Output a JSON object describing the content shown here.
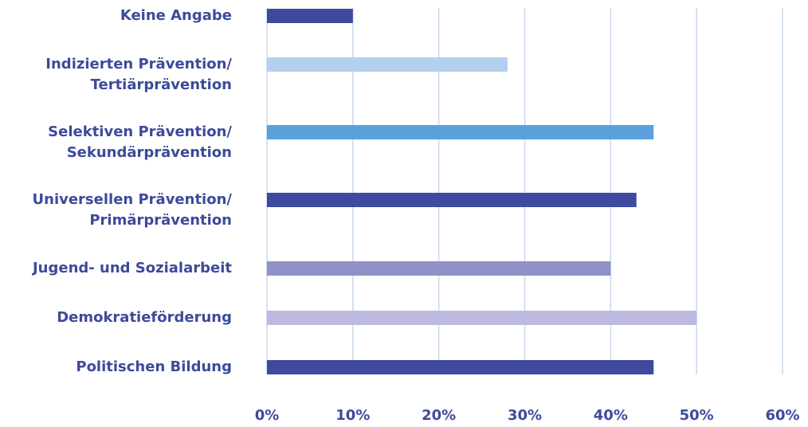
{
  "chart_data": {
    "type": "bar",
    "orientation": "horizontal",
    "categories": [
      "Keine Angabe",
      "Indizierten Prävention/\nTertiärprävention",
      "Selektiven Prävention/\nSekundärprävention",
      "Universellen Prävention/\nPrimärprävention",
      "Jugend- und Sozialarbeit",
      "Demokratieförderung",
      "Politischen Bildung"
    ],
    "values": [
      10,
      28,
      45,
      43,
      40,
      50,
      45
    ],
    "colors": [
      "#3f4a9e",
      "#b5d0ef",
      "#5aa1dc",
      "#3f4a9e",
      "#9090c8",
      "#bcbae0",
      "#3f4a9e"
    ],
    "xlim": [
      0,
      60
    ],
    "xticks": [
      {
        "value": 0,
        "label": "0%"
      },
      {
        "value": 10,
        "label": "10%"
      },
      {
        "value": 20,
        "label": "20%"
      },
      {
        "value": 30,
        "label": "30%"
      },
      {
        "value": 40,
        "label": "40%"
      },
      {
        "value": 50,
        "label": "50%"
      },
      {
        "value": 60,
        "label": "60%"
      }
    ],
    "grid": true
  }
}
